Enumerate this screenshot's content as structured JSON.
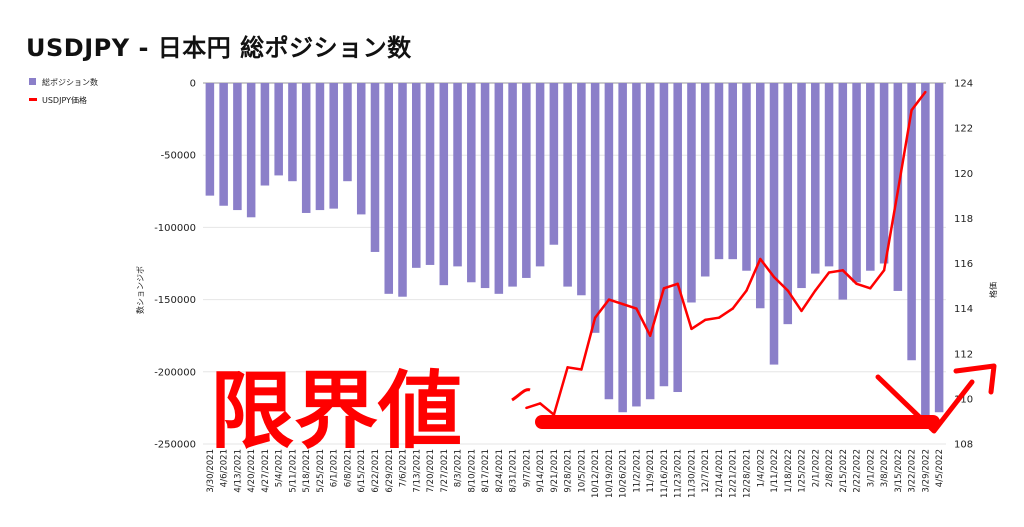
{
  "title": "USDJPY - 日本円 総ポジション数",
  "annotation": "限界値",
  "colors": {
    "bars": "#8b7fc9",
    "line": "#ff0000",
    "grid": "#e6e6e6",
    "annotation": "#ff0000"
  },
  "chart_data": {
    "type": "bar+line",
    "legend_position": "top-left",
    "grid": true,
    "y_left": {
      "label": "数ションジボ",
      "range": [
        -250000,
        0
      ],
      "ticks": [
        0,
        -50000,
        -100000,
        -150000,
        -200000,
        -250000
      ]
    },
    "y_right": {
      "label": "格価",
      "range": [
        108,
        124
      ],
      "ticks": [
        124,
        122,
        120,
        118,
        116,
        114,
        112,
        110,
        108
      ]
    },
    "x_tick_labels": [
      "3/30/2021",
      "4/6/2021",
      "4/13/2021",
      "4/20/2021",
      "4/27/2021",
      "5/4/2021",
      "5/11/2021",
      "5/18/2021",
      "5/25/2021",
      "6/1/2021",
      "6/8/2021",
      "6/15/2021",
      "6/22/2021",
      "6/29/2021",
      "7/6/2021",
      "7/13/2021",
      "7/20/2021",
      "7/27/2021",
      "8/3/2021",
      "8/10/2021",
      "8/17/2021",
      "8/24/2021",
      "8/31/2021",
      "9/7/2021",
      "9/14/2021",
      "9/21/2021",
      "9/28/2021",
      "10/5/2021",
      "10/12/2021",
      "10/19/2021",
      "10/26/2021",
      "11/2/2021",
      "11/9/2021",
      "11/16/2021",
      "11/23/2021",
      "11/30/2021",
      "12/7/2021",
      "12/14/2021",
      "12/21/2021",
      "12/28/2021",
      "1/4/2022",
      "1/11/2022",
      "1/18/2022",
      "1/25/2022",
      "2/1/2022",
      "2/8/2022",
      "2/15/2022",
      "2/22/2022",
      "3/1/2022",
      "3/8/2022",
      "3/15/2022",
      "3/22/2022",
      "3/29/2022",
      "4/5/2022"
    ],
    "series": [
      {
        "name": "総ポジション数",
        "type": "bar",
        "axis": "left",
        "values": [
          -78000,
          -85000,
          -88000,
          -93000,
          -71000,
          -64000,
          -68000,
          -90000,
          -88000,
          -87000,
          -68000,
          -91000,
          -117000,
          -146000,
          -148000,
          -128000,
          -126000,
          -140000,
          -127000,
          -138000,
          -142000,
          -146000,
          -141000,
          -135000,
          -127000,
          -112000,
          -141000,
          -147000,
          -173000,
          -219000,
          -228000,
          -224000,
          -219000,
          -210000,
          -214000,
          -152000,
          -134000,
          -122000,
          -122000,
          -130000,
          -156000,
          -195000,
          -167000,
          -142000,
          -132000,
          -127000,
          -150000,
          -138000,
          -130000,
          -125000,
          -144000,
          -192000,
          -230000,
          -228000
        ]
      },
      {
        "name": "USDJPY価格",
        "type": "line",
        "axis": "right",
        "values": [
          null,
          null,
          null,
          null,
          null,
          null,
          null,
          null,
          null,
          null,
          null,
          null,
          null,
          null,
          null,
          null,
          null,
          null,
          null,
          null,
          null,
          null,
          null,
          109.6,
          109.8,
          109.3,
          111.4,
          111.3,
          113.6,
          114.4,
          114.2,
          114.0,
          112.8,
          114.9,
          115.1,
          113.1,
          113.5,
          113.6,
          114.0,
          114.8,
          116.2,
          115.4,
          114.8,
          113.9,
          114.8,
          115.6,
          115.7,
          115.1,
          114.9,
          115.7,
          119.2,
          122.8,
          123.6,
          null
        ]
      }
    ]
  }
}
